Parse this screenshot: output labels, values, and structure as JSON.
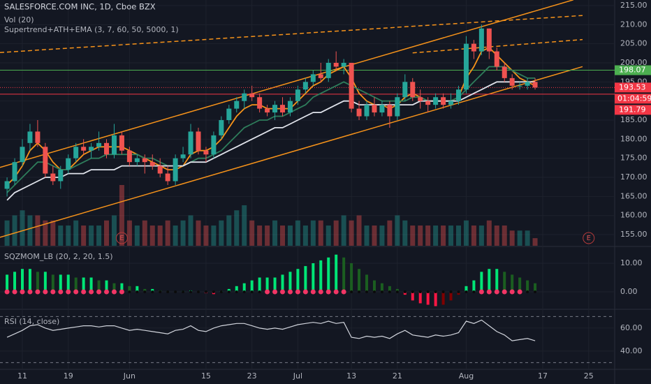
{
  "chart_data": [
    {
      "type": "candlestick",
      "title": "SALESFORCE.COM INC, 1D, Cboe BZX",
      "volume_label": "Vol (20)",
      "indicator_label": "Supertrend+ATH+EMA (3, 7, 60, 50, 5000, 1)",
      "ylim": [
        152.08,
        216.46
      ],
      "yticks": [
        {
          "value": 155,
          "label": "155.00"
        },
        {
          "value": 160,
          "label": "160.00"
        },
        {
          "value": 165,
          "label": "165.00"
        },
        {
          "value": 170,
          "label": "170.00"
        },
        {
          "value": 175,
          "label": "175.00"
        },
        {
          "value": 180,
          "label": "180.00"
        },
        {
          "value": 185,
          "label": "185.00"
        },
        {
          "value": 190,
          "label": "190.00"
        },
        {
          "value": 195,
          "label": "195.00"
        },
        {
          "value": 200,
          "label": "200.00"
        },
        {
          "value": 205,
          "label": "205.00"
        },
        {
          "value": 210,
          "label": "210.00"
        },
        {
          "value": 215,
          "label": "215.00"
        }
      ],
      "up_color": "#26a69a",
      "down_color": "#ef5350",
      "open": [
        167,
        169,
        174,
        179,
        182,
        178,
        171,
        169,
        172,
        175,
        178,
        177,
        178,
        179,
        176,
        181,
        177,
        174,
        175,
        174,
        173,
        171,
        169,
        175,
        176,
        182,
        177,
        176,
        181,
        185,
        188,
        190,
        192,
        191,
        188,
        187,
        189,
        187,
        190,
        193,
        195,
        197,
        196,
        200,
        199,
        200,
        188,
        186,
        189,
        187,
        189,
        186,
        191,
        195,
        191,
        190,
        189,
        191,
        189,
        190,
        193,
        205,
        203,
        209,
        203,
        199,
        196,
        194,
        194,
        195
      ],
      "high": [
        170,
        175,
        180,
        184,
        185,
        179,
        173,
        173,
        176,
        179,
        180,
        179,
        182,
        180,
        184,
        182,
        178,
        176,
        176,
        176,
        175,
        173,
        176,
        178,
        184,
        183,
        178,
        182,
        186,
        189,
        191,
        193,
        194,
        192,
        189,
        190,
        191,
        191,
        194,
        196,
        198,
        200,
        201,
        203,
        201,
        200,
        190,
        190,
        191,
        190,
        190,
        192,
        197,
        196,
        193,
        191,
        192,
        192,
        192,
        194,
        207,
        206,
        210,
        209,
        204,
        200,
        197,
        195,
        196,
        196
      ],
      "low": [
        165,
        168,
        173,
        177,
        178,
        170,
        168,
        167,
        171,
        174,
        176,
        175,
        177,
        175,
        175,
        176,
        173,
        173,
        171,
        172,
        170,
        168,
        168,
        174,
        175,
        176,
        174,
        175,
        180,
        184,
        187,
        188,
        190,
        187,
        186,
        185,
        186,
        186,
        189,
        192,
        194,
        195,
        195,
        198,
        197,
        187,
        185,
        185,
        186,
        186,
        183,
        185,
        190,
        190,
        188,
        187,
        188,
        188,
        188,
        189,
        192,
        201,
        202,
        201,
        198,
        195,
        193,
        193,
        193,
        193
      ],
      "close": [
        169,
        174,
        178,
        182,
        179,
        171,
        169,
        172,
        175,
        178,
        177,
        178,
        179,
        176,
        181,
        177,
        174,
        175,
        174,
        173,
        171,
        169,
        175,
        176,
        182,
        177,
        176,
        181,
        185,
        188,
        190,
        192,
        191,
        188,
        187,
        189,
        187,
        190,
        193,
        195,
        197,
        196,
        200,
        199,
        200,
        188,
        186,
        189,
        187,
        189,
        186,
        191,
        195,
        191,
        190,
        189,
        191,
        189,
        190,
        193,
        205,
        203,
        209,
        203,
        199,
        196,
        194,
        194,
        195,
        193.53
      ],
      "volume": [
        5,
        6,
        7,
        6,
        6,
        5,
        5,
        4,
        4,
        5,
        4,
        4,
        4,
        5,
        6,
        12,
        5,
        4,
        5,
        4,
        4,
        5,
        4,
        5,
        6,
        5,
        4,
        4,
        5,
        6,
        7,
        8,
        5,
        4,
        4,
        5,
        4,
        4,
        5,
        4,
        5,
        5,
        4,
        5,
        6,
        5,
        6,
        4,
        4,
        4,
        5,
        6,
        5,
        4,
        4,
        4,
        4,
        4,
        4,
        4,
        5,
        4,
        4,
        5,
        4,
        4,
        3,
        3,
        3,
        1.5
      ],
      "ma_lines": [
        {
          "color": "#f7931a",
          "values": [
            168,
            170,
            173,
            177,
            179,
            177,
            174,
            172,
            172,
            174,
            176,
            177,
            178,
            178,
            178,
            178,
            177,
            176,
            175,
            174,
            173,
            172,
            172,
            173,
            176,
            177,
            177,
            178,
            180,
            183,
            186,
            188,
            189,
            189,
            188,
            188,
            188,
            188,
            190,
            192,
            194,
            195,
            197,
            198,
            199,
            196,
            192,
            190,
            189,
            189,
            188,
            189,
            191,
            192,
            191,
            190,
            190,
            190,
            190,
            191,
            196,
            199,
            203,
            204,
            202,
            200,
            198,
            196,
            195,
            194
          ]
        },
        {
          "color": "#2e7d5b",
          "values": [
            166,
            168,
            170,
            172,
            174,
            174,
            173,
            172,
            172,
            173,
            174,
            175,
            175,
            176,
            176,
            176,
            176,
            176,
            175,
            175,
            174,
            173,
            173,
            173,
            174,
            175,
            175,
            176,
            177,
            179,
            181,
            183,
            184,
            185,
            185,
            186,
            186,
            187,
            188,
            189,
            191,
            192,
            193,
            194,
            195,
            194,
            193,
            192,
            191,
            190,
            190,
            190,
            190,
            191,
            191,
            190,
            190,
            190,
            190,
            191,
            193,
            195,
            197,
            199,
            199,
            199,
            198,
            197,
            196,
            196
          ]
        },
        {
          "color": "#e0e3eb",
          "values": [
            164,
            166,
            167,
            168,
            169,
            170,
            170,
            170,
            171,
            171,
            171,
            172,
            172,
            172,
            172,
            173,
            173,
            173,
            173,
            173,
            173,
            173,
            173,
            173,
            174,
            174,
            174,
            175,
            176,
            177,
            178,
            179,
            180,
            181,
            182,
            183,
            183,
            184,
            185,
            186,
            187,
            187,
            188,
            189,
            190,
            190,
            189,
            189,
            189,
            189,
            189,
            189,
            189,
            189,
            190,
            190,
            190,
            190,
            190,
            190,
            191,
            192,
            193,
            194,
            195,
            195,
            195,
            195,
            195,
            195
          ]
        }
      ],
      "trendlines": [
        {
          "color": "#f7931a",
          "dashed": false,
          "points": [
            [
              -0.92,
              172.6
            ],
            [
              74,
              216.5
            ]
          ]
        },
        {
          "color": "#f7931a",
          "dashed": false,
          "points": [
            [
              -0.92,
              154.3
            ],
            [
              75.2,
              199
            ]
          ]
        },
        {
          "color": "#f7931a",
          "dashed": true,
          "points": [
            [
              -0.92,
              202.7
            ],
            [
              75.2,
              212.4
            ]
          ]
        },
        {
          "color": "#f7931a",
          "dashed": true,
          "points": [
            [
              53,
              202.6
            ],
            [
              75.2,
              206.1
            ]
          ]
        }
      ],
      "levels": [
        {
          "value": 198.07,
          "color": "#4caf50",
          "dotted": false
        },
        {
          "value": 193.53,
          "color": "#f23645",
          "dotted": true
        },
        {
          "value": 191.79,
          "color": "#f23645",
          "dotted": false
        }
      ],
      "countdown": "01:04:59",
      "earnings": [
        {
          "x": 15,
          "label": "E"
        },
        {
          "x": 76,
          "label": "E"
        }
      ]
    },
    {
      "type": "bar",
      "title": "SQZMOM_LB (20, 2, 20, 1.5)",
      "ylim": [
        -5.85,
        15.12
      ],
      "yticks": [
        {
          "value": 0,
          "label": "0.00"
        },
        {
          "value": 10,
          "label": "10.00"
        }
      ],
      "colors": {
        "pos_up": "#00e676",
        "pos_down": "#1b5e20",
        "neg_down": "#ff1744",
        "neg_up": "#7f0000",
        "squeeze_on": "#f23665",
        "squeeze_off": "#0b0b0b"
      },
      "values": [
        6,
        7,
        8,
        8,
        7,
        7,
        6,
        6,
        6,
        5,
        5,
        5,
        4,
        4,
        3,
        3,
        2,
        2,
        1,
        1,
        0.5,
        0.3,
        0.2,
        0.3,
        0.5,
        0.3,
        -0.5,
        -0.8,
        0.3,
        1,
        2,
        3,
        4,
        5,
        5,
        5,
        6,
        7,
        8,
        9,
        10,
        11,
        12,
        13,
        12,
        10,
        8,
        6,
        4,
        3,
        2,
        1,
        -1,
        -3,
        -4,
        -4.5,
        -5,
        -4.5,
        -3,
        -1,
        2,
        4,
        7,
        8,
        8,
        7,
        6,
        5,
        4,
        3
      ],
      "squeeze": [
        1,
        1,
        1,
        1,
        1,
        1,
        1,
        1,
        1,
        1,
        1,
        1,
        1,
        1,
        1,
        1,
        0,
        0,
        0,
        0,
        0,
        0,
        0,
        0,
        0,
        0,
        0,
        0,
        0,
        0,
        0,
        0,
        0,
        0,
        1,
        1,
        1,
        1,
        1,
        1,
        1,
        1,
        1,
        1,
        1,
        0,
        0,
        0,
        0,
        0,
        0,
        0,
        0,
        0,
        0,
        0,
        0,
        0,
        0,
        0,
        0,
        0,
        1,
        1,
        1,
        1,
        1,
        1,
        0,
        0
      ]
    },
    {
      "type": "line",
      "title": "RSI (14, close)",
      "ylim": [
        24.8,
        74.5
      ],
      "color": "#d1d4dc",
      "bands": [
        30,
        70
      ],
      "yticks": [
        {
          "value": 40,
          "label": "40.00"
        },
        {
          "value": 60,
          "label": "60.00"
        }
      ],
      "values": [
        52,
        55,
        58,
        62,
        63,
        60,
        58,
        59,
        60,
        61,
        62,
        62,
        61,
        62,
        62,
        60,
        58,
        59,
        58,
        57,
        56,
        55,
        58,
        59,
        62,
        58,
        57,
        60,
        62,
        63,
        64,
        64,
        62,
        60,
        59,
        60,
        59,
        61,
        63,
        64,
        65,
        64,
        66,
        64,
        65,
        52,
        51,
        53,
        52,
        53,
        51,
        55,
        58,
        54,
        53,
        52,
        54,
        53,
        54,
        56,
        66,
        64,
        67,
        62,
        57,
        54,
        49,
        50,
        51,
        49
      ],
      "xlim": [
        -0.92,
        79.4
      ],
      "xticks": [
        {
          "value": 2,
          "label": "11"
        },
        {
          "value": 8,
          "label": "19"
        },
        {
          "value": 16,
          "label": "Jun"
        },
        {
          "value": 26,
          "label": "15"
        },
        {
          "value": 32,
          "label": "23"
        },
        {
          "value": 38,
          "label": "Jul"
        },
        {
          "value": 45,
          "label": "13"
        },
        {
          "value": 51,
          "label": "21"
        },
        {
          "value": 60,
          "label": "Aug"
        },
        {
          "value": 70,
          "label": "17"
        },
        {
          "value": 76,
          "label": "25"
        }
      ]
    }
  ]
}
